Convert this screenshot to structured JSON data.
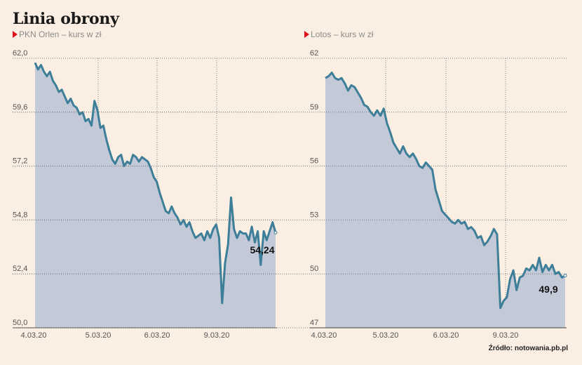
{
  "title": "Linia obrony",
  "source": "Źródło: notowania.pb.pl",
  "colors": {
    "background": "#fbeee2",
    "area": "#c3c9d6",
    "line": "#3d7e99",
    "marker": "#e0101e"
  },
  "chart_data": [
    {
      "type": "area",
      "title": "PKN Orlen – kurs w zł",
      "ylim": [
        50.0,
        62.0
      ],
      "yticks": [
        "62,0",
        "59,6",
        "57,2",
        "54,8",
        "52,4",
        "50,0"
      ],
      "ytick_values": [
        62.0,
        59.6,
        57.2,
        54.8,
        52.4,
        50.0
      ],
      "xticks": [
        "4.03.20",
        "5.03.20",
        "6.03.20",
        "9.03.20"
      ],
      "last_value_label": "54,24",
      "grid": true,
      "series": [
        {
          "values": [
            61.8,
            61.5,
            61.7,
            61.4,
            61.2,
            61.4,
            61.0,
            60.8,
            60.5,
            60.6,
            60.3,
            60.0,
            60.2,
            59.9,
            59.8,
            59.5,
            59.6,
            59.2,
            59.3,
            59.0,
            60.1,
            59.7,
            58.9,
            59.0,
            58.4,
            57.9,
            57.5,
            57.3,
            57.6,
            57.7,
            57.2,
            57.4,
            57.3,
            57.7,
            57.6,
            57.4,
            57.6,
            57.5,
            57.4,
            57.1,
            56.7,
            56.5,
            56.0,
            55.6,
            55.2,
            55.1,
            55.4,
            55.1,
            54.9,
            54.6,
            54.8,
            54.5,
            54.7,
            54.3,
            54.0,
            54.1,
            54.2,
            53.9,
            54.3,
            54.0,
            54.4,
            54.6,
            54.0,
            51.1,
            52.9,
            53.7,
            55.8,
            54.4,
            54.0,
            54.3,
            54.2,
            54.2,
            53.9,
            54.5,
            53.8,
            54.3,
            52.8,
            54.3,
            53.9,
            54.3,
            54.7,
            54.24
          ]
        }
      ]
    },
    {
      "type": "area",
      "title": "Lotos – kurs w zł",
      "ylim": [
        47,
        62
      ],
      "yticks": [
        "62",
        "59",
        "56",
        "53",
        "50",
        "47"
      ],
      "ytick_values": [
        62,
        59,
        56,
        53,
        50,
        47
      ],
      "xticks": [
        "4.03.20",
        "5.03.20",
        "6.03.20",
        "9.03.20"
      ],
      "last_value_label": "49,9",
      "grid": true,
      "series": [
        {
          "values": [
            60.9,
            61.0,
            61.2,
            60.9,
            60.8,
            60.9,
            60.6,
            60.2,
            60.5,
            60.4,
            60.1,
            59.8,
            59.4,
            59.3,
            59.0,
            58.8,
            59.1,
            58.8,
            59.2,
            58.4,
            57.9,
            57.3,
            57.0,
            56.7,
            57.1,
            56.7,
            56.5,
            56.7,
            56.4,
            56.0,
            55.9,
            56.2,
            56.0,
            55.8,
            54.7,
            54.1,
            53.5,
            53.3,
            53.1,
            52.9,
            52.8,
            53.0,
            52.8,
            52.9,
            52.5,
            52.6,
            52.4,
            52.0,
            52.1,
            51.6,
            51.8,
            52.1,
            52.5,
            52.2,
            48.1,
            48.5,
            48.7,
            49.7,
            50.2,
            49.1,
            49.8,
            49.9,
            50.3,
            50.2,
            50.5,
            50.2,
            50.9,
            50.1,
            50.5,
            50.2,
            50.5,
            50.0,
            50.1,
            49.8,
            49.9
          ]
        }
      ]
    }
  ]
}
